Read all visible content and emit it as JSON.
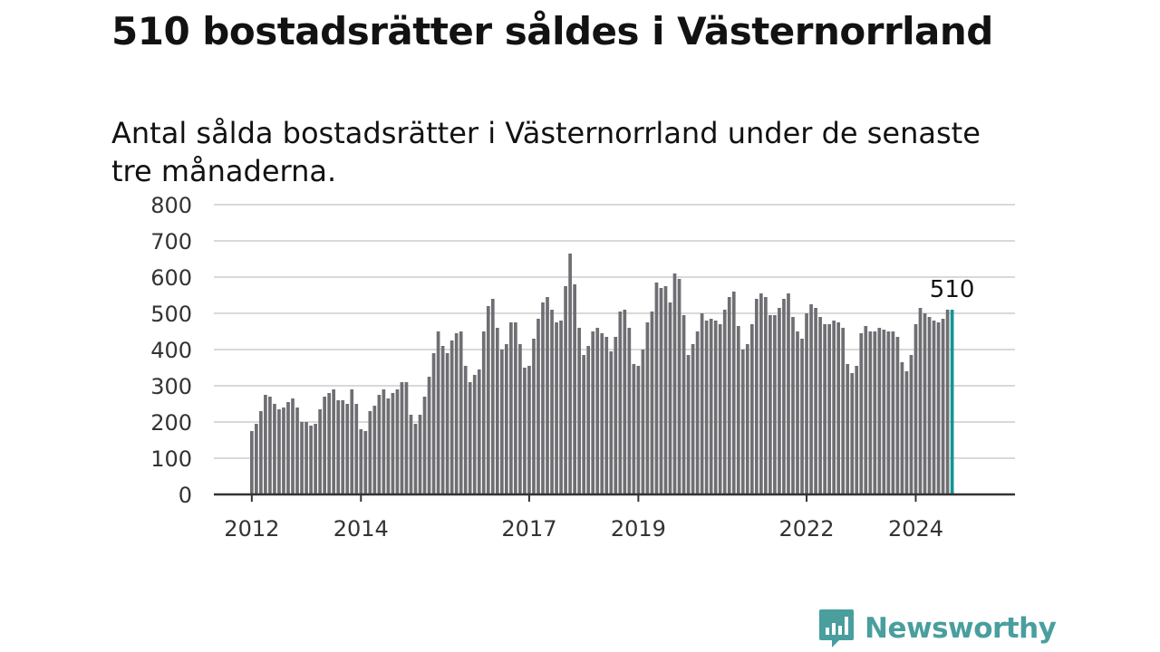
{
  "title": "510 bostadsrätter såldes i Västernorrland",
  "subtitle": "Antal sålda bostadsrätter i Västernorrland under de senaste tre månaderna.",
  "brand": {
    "name": "Newsworthy",
    "color": "#4a9e9e",
    "icon": "newsworthy-logo-icon"
  },
  "colors": {
    "bar": "#6f6e73",
    "highlight": "#149494",
    "grid": "#d9d9d9",
    "axis": "#333333"
  },
  "chart_data": {
    "type": "bar",
    "title": "",
    "xlabel": "",
    "ylabel": "",
    "ylim": [
      0,
      800
    ],
    "yticks": [
      "0",
      "100",
      "200",
      "300",
      "400",
      "500",
      "600",
      "700",
      "800"
    ],
    "xticks": [
      {
        "label": "2012",
        "index": 0
      },
      {
        "label": "2014",
        "index": 24
      },
      {
        "label": "2017",
        "index": 61
      },
      {
        "label": "2019",
        "index": 85
      },
      {
        "label": "2022",
        "index": 122
      },
      {
        "label": "2024",
        "index": 146
      }
    ],
    "grid": true,
    "highlight_label": "510",
    "values": [
      175,
      195,
      230,
      275,
      270,
      250,
      235,
      240,
      255,
      265,
      240,
      200,
      200,
      190,
      195,
      235,
      270,
      280,
      290,
      260,
      260,
      250,
      290,
      250,
      180,
      175,
      230,
      245,
      275,
      290,
      265,
      280,
      290,
      310,
      310,
      220,
      195,
      220,
      270,
      325,
      390,
      450,
      410,
      390,
      425,
      445,
      450,
      355,
      310,
      330,
      345,
      450,
      520,
      540,
      460,
      400,
      415,
      475,
      475,
      415,
      350,
      355,
      430,
      485,
      530,
      545,
      510,
      475,
      480,
      575,
      665,
      580,
      460,
      385,
      410,
      450,
      460,
      445,
      435,
      395,
      435,
      505,
      510,
      460,
      360,
      355,
      400,
      475,
      505,
      585,
      570,
      575,
      530,
      610,
      595,
      495,
      385,
      415,
      450,
      500,
      480,
      485,
      480,
      470,
      510,
      545,
      560,
      465,
      400,
      415,
      470,
      540,
      555,
      545,
      495,
      495,
      515,
      540,
      555,
      490,
      450,
      430,
      500,
      525,
      515,
      490,
      470,
      470,
      480,
      475,
      460,
      360,
      335,
      355,
      445,
      465,
      450,
      450,
      460,
      455,
      450,
      450,
      435,
      365,
      340,
      385,
      470,
      515,
      500,
      490,
      480,
      475,
      485,
      510,
      510
    ]
  }
}
